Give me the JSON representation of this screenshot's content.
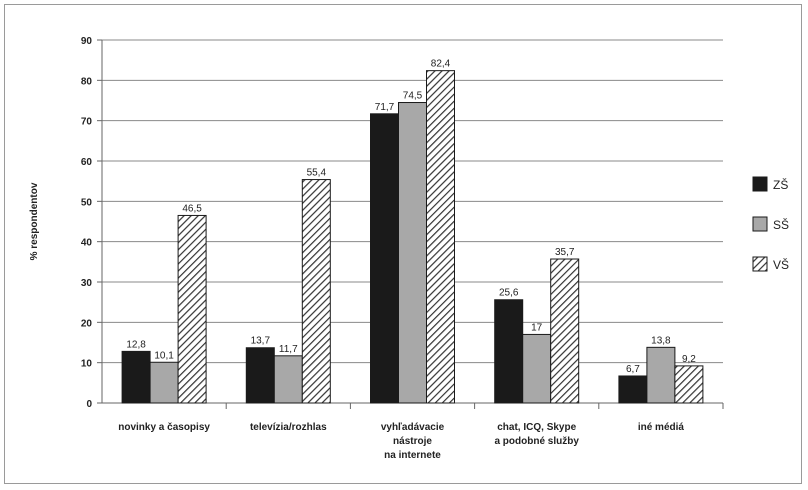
{
  "chart_data": {
    "type": "bar",
    "ylabel": "% respondentov",
    "ylim": [
      0,
      90
    ],
    "yticks": [
      0,
      10,
      20,
      30,
      40,
      50,
      60,
      70,
      80,
      90
    ],
    "grid": true,
    "legend_position": "right",
    "categories": [
      [
        "novinky a časopisy"
      ],
      [
        "televízia/rozhlas"
      ],
      [
        "vyhľadávacie",
        "nástroje",
        "na internete"
      ],
      [
        "chat, ICQ, Skype",
        "a podobné služby"
      ],
      [
        "iné médiá"
      ]
    ],
    "series": [
      {
        "name": "ZŠ",
        "values": [
          12.8,
          13.7,
          71.7,
          25.6,
          6.7
        ],
        "labels": [
          "12,8",
          "13,7",
          "71,7",
          "25,6",
          "6,7"
        ],
        "color": "#1a1a1a",
        "pattern": "solid"
      },
      {
        "name": "SŠ",
        "values": [
          10.1,
          11.7,
          74.5,
          17,
          13.8
        ],
        "labels": [
          "10,1",
          "11,7",
          "74,5",
          "17",
          "13,8"
        ],
        "color": "#a8a8a8",
        "pattern": "solid"
      },
      {
        "name": "VŠ",
        "values": [
          46.5,
          55.4,
          82.4,
          35.7,
          9.2
        ],
        "labels": [
          "46,5",
          "55,4",
          "82,4",
          "35,7",
          "9,2"
        ],
        "color": "#ffffff",
        "pattern": "diagonal-hatch"
      }
    ]
  }
}
